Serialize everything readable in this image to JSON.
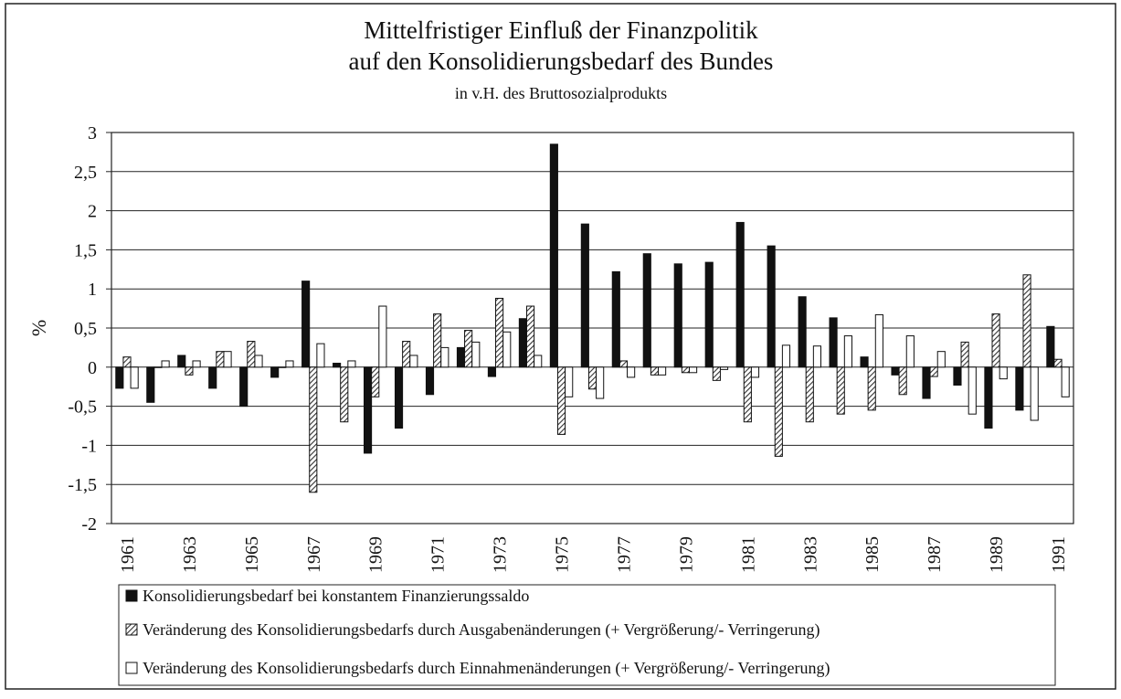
{
  "chart_data": {
    "type": "bar",
    "title": "Mittelfristiger Einfluß der Finanzpolitik",
    "subtitle": "auf den Konsolidierungsbedarf des Bundes",
    "note": "in v.H. des Bruttosozialprodukts",
    "ylabel": "%",
    "categories": [
      "1961",
      null,
      "1963",
      null,
      "1965",
      null,
      "1967",
      null,
      "1969",
      null,
      "1971",
      null,
      "1973",
      null,
      "1975",
      null,
      "1977",
      null,
      "1979",
      null,
      "1981",
      null,
      "1983",
      null,
      "1985",
      null,
      "1987",
      null,
      "1989",
      null,
      "1991"
    ],
    "series": [
      {
        "name": "Konsolidierungsbedarf bei konstantem Finanzierungssaldo",
        "color": "#111111",
        "values": [
          -0.27,
          -0.45,
          0.15,
          -0.27,
          -0.5,
          -0.13,
          1.1,
          0.05,
          -1.1,
          -0.78,
          -0.35,
          0.25,
          -0.12,
          0.62,
          2.85,
          1.83,
          1.22,
          1.45,
          1.32,
          1.34,
          1.85,
          1.55,
          0.9,
          0.63,
          0.13,
          -0.1,
          -0.4,
          -0.23,
          -0.78,
          -0.55,
          0.52
        ]
      },
      {
        "name": "Veränderung des Konsolidierungsbedarfs durch Ausgabenänderungen (+ Vergrößerung/- Verringerung)",
        "color": "#444444",
        "hatched": true,
        "values": [
          0.13,
          0.0,
          -0.1,
          0.2,
          0.33,
          0.0,
          -1.6,
          -0.7,
          -0.38,
          0.33,
          0.68,
          0.47,
          0.88,
          0.78,
          -0.86,
          -0.28,
          0.08,
          -0.1,
          -0.07,
          -0.17,
          -0.7,
          -1.14,
          -0.7,
          -0.6,
          -0.55,
          -0.35,
          -0.12,
          0.32,
          0.68,
          1.18,
          0.1
        ]
      },
      {
        "name": "Veränderung des Konsolidierungsbedarfs durch Einnahmenänderungen (+ Vergrößerung/- Verringerung)",
        "color": "#ffffff",
        "values": [
          -0.27,
          0.08,
          0.08,
          0.2,
          0.15,
          0.08,
          0.3,
          0.08,
          0.78,
          0.15,
          0.25,
          0.32,
          0.45,
          0.15,
          -0.38,
          -0.4,
          -0.13,
          -0.1,
          -0.07,
          -0.03,
          -0.13,
          0.28,
          0.27,
          0.4,
          0.67,
          0.4,
          0.2,
          -0.6,
          -0.15,
          -0.68,
          -0.38
        ]
      }
    ],
    "ylim": [
      -2,
      3
    ],
    "yticks": [
      3,
      {
        "value": 2.5,
        "label": "2,5"
      },
      2,
      {
        "value": 1.5,
        "label": "1,5"
      },
      1,
      {
        "value": 0.5,
        "label": "0,5"
      },
      0,
      {
        "value": -0.5,
        "label": "-0,5"
      },
      -1,
      {
        "value": -1.5,
        "label": "-1,5"
      },
      -2
    ],
    "grid": true
  }
}
